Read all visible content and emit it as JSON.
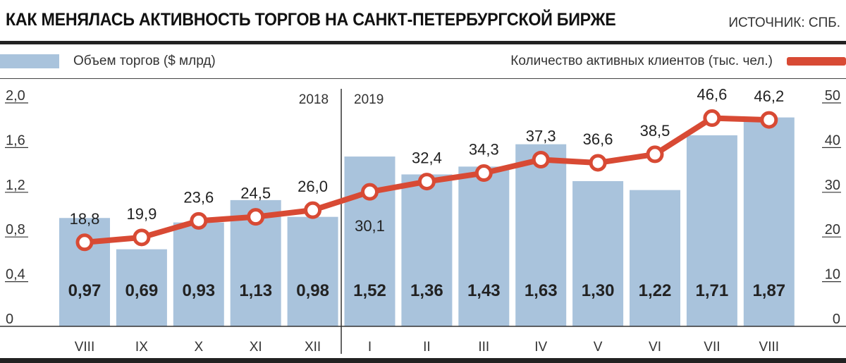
{
  "title": "КАК МЕНЯЛАСЬ АКТИВНОСТЬ ТОРГОВ НА САНКТ-ПЕТЕРБУРГСКОЙ БИРЖЕ",
  "source": "ИСТОЧНИК: СПБ.",
  "legend": {
    "bars_label": "Объем торгов ($ млрд)",
    "line_label": "Количество активных клиентов (тыс. чел.)"
  },
  "colors": {
    "bar": "#a9c3dc",
    "line": "#d84a34",
    "text": "#222222"
  },
  "chart_data": {
    "type": "bar",
    "categories": [
      "VIII",
      "IX",
      "X",
      "XI",
      "XII",
      "I",
      "II",
      "III",
      "IV",
      "V",
      "VI",
      "VII",
      "VIII"
    ],
    "year_labels": [
      "2018",
      "2019"
    ],
    "year_split_after_index": 4,
    "series": [
      {
        "name": "Объем торгов ($ млрд)",
        "kind": "bar",
        "axis": "left",
        "values": [
          0.97,
          0.69,
          0.93,
          1.13,
          0.98,
          1.52,
          1.36,
          1.43,
          1.63,
          1.3,
          1.22,
          1.71,
          1.87
        ],
        "labels": [
          "0,97",
          "0,69",
          "0,93",
          "1,13",
          "0,98",
          "1,52",
          "1,36",
          "1,43",
          "1,63",
          "1,30",
          "1,22",
          "1,71",
          "1,87"
        ]
      },
      {
        "name": "Количество активных клиентов (тыс. чел.)",
        "kind": "line",
        "axis": "right",
        "values": [
          18.8,
          19.9,
          23.6,
          24.5,
          26.0,
          30.1,
          32.4,
          34.3,
          37.3,
          36.6,
          38.5,
          46.6,
          46.2
        ],
        "labels": [
          "18,8",
          "19,9",
          "23,6",
          "24,5",
          "26,0",
          "30,1",
          "32,4",
          "34,3",
          "37,3",
          "36,6",
          "38,5",
          "46,6",
          "46,2"
        ]
      }
    ],
    "y_left": {
      "ticks": [
        "0",
        "0,4",
        "0,8",
        "1,2",
        "1,6",
        "2,0"
      ],
      "values": [
        0,
        0.4,
        0.8,
        1.2,
        1.6,
        2.0
      ],
      "ylim": [
        0,
        2.0
      ]
    },
    "y_right": {
      "ticks": [
        "0",
        "10",
        "20",
        "30",
        "40",
        "50"
      ],
      "values": [
        0,
        10,
        20,
        30,
        40,
        50
      ],
      "ylim": [
        0,
        50
      ]
    }
  }
}
